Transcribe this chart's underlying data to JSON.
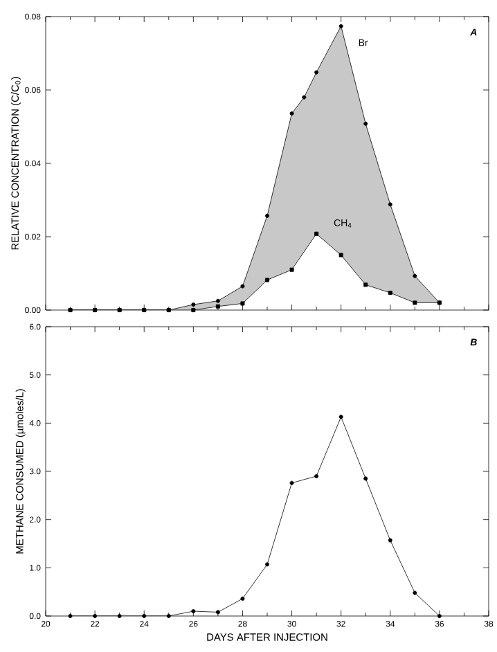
{
  "chart_data": [
    {
      "type": "line",
      "ylabel": "RELATIVE CONCENTRATION (C/C$_{0}$)",
      "annotations": [
        "A"
      ],
      "xlim": [
        20,
        38
      ],
      "xticks": [
        20,
        22,
        24,
        26,
        28,
        30,
        32,
        34,
        36,
        38
      ],
      "ylim": [
        0,
        0.08
      ],
      "yticks": [
        {
          "value": 0,
          "label": "0.00"
        },
        {
          "value": 0.02,
          "label": "0.02"
        },
        {
          "value": 0.04,
          "label": "0.04"
        },
        {
          "value": 0.06,
          "label": "0.06"
        },
        {
          "value": 0.08,
          "label": "0.08"
        }
      ],
      "tick_labels": "y",
      "series": [
        {
          "name": "Br",
          "type": "line",
          "marker": "circle",
          "color": "#000000",
          "x": [
            21,
            22,
            23,
            24,
            25,
            26,
            27,
            28,
            29,
            30,
            30.5,
            31,
            32,
            33,
            34,
            35,
            36
          ],
          "values": [
            0,
            0,
            0,
            0,
            0,
            0.0015,
            0.0025,
            0.0065,
            0.0257,
            0.0536,
            0.058,
            0.0648,
            0.0774,
            0.0508,
            0.0288,
            0.0093,
            0.002
          ],
          "lower": [
            0,
            0,
            0,
            0,
            0,
            0,
            0.001,
            0.0018,
            0.0082,
            0.011,
            0.0159,
            0.0208,
            0.015,
            0.0069,
            0.0047,
            0.002,
            0.002
          ],
          "upper": [
            0,
            0,
            0,
            0,
            0,
            0.0015,
            0.0025,
            0.0065,
            0.0257,
            0.0536,
            0.058,
            0.0648,
            0.0774,
            0.0508,
            0.0288,
            0.0093,
            0.002
          ]
        },
        {
          "name": "CH$_{4}$",
          "type": "line",
          "marker": "square",
          "color": "#000000",
          "x": [
            21,
            22,
            23,
            24,
            25,
            26,
            27,
            28,
            29,
            30,
            31,
            32,
            33,
            34,
            35,
            36
          ],
          "values": [
            0,
            0,
            0,
            0,
            0,
            0,
            0.001,
            0.0018,
            0.0082,
            0.011,
            0.0208,
            0.015,
            0.0069,
            0.0047,
            0.002,
            0.002
          ]
        }
      ]
    },
    {
      "type": "line",
      "ylabel": "METHANE CONSUMED (µmoles/L)",
      "xlabel": "DAYS AFTER INJECTION",
      "annotations": [
        "B"
      ],
      "xlim": [
        20,
        38
      ],
      "xticks": [
        20,
        22,
        24,
        26,
        28,
        30,
        32,
        34,
        36,
        38
      ],
      "ylim": [
        0,
        6
      ],
      "yticks": [
        {
          "value": 0,
          "label": "0.0"
        },
        {
          "value": 1,
          "label": "1.0"
        },
        {
          "value": 2,
          "label": "2.0"
        },
        {
          "value": 3,
          "label": "3.0"
        },
        {
          "value": 4,
          "label": "4.0"
        },
        {
          "value": 5,
          "label": "5.0"
        },
        {
          "value": 6,
          "label": "6.0"
        }
      ],
      "marker": "circle",
      "color": "#000000",
      "x": [
        21,
        22,
        23,
        24,
        25,
        26,
        27,
        28,
        29,
        30,
        31,
        32,
        33,
        34,
        35,
        36
      ],
      "values": [
        0,
        0,
        0,
        0,
        0,
        0.1,
        0.08,
        0.36,
        1.07,
        2.76,
        2.9,
        4.13,
        2.85,
        1.57,
        0.48,
        0
      ]
    }
  ]
}
